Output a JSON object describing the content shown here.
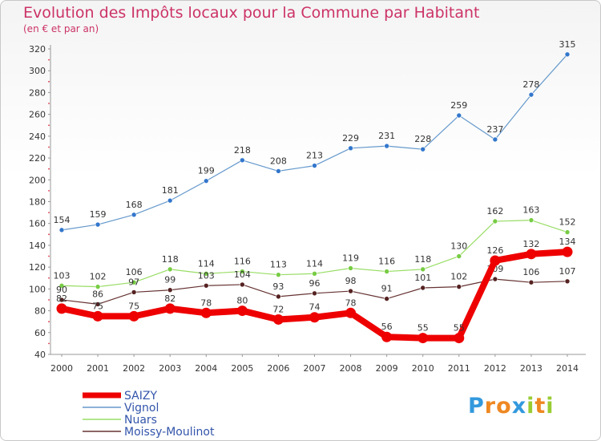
{
  "chart_data": {
    "type": "line",
    "title": "Evolution des Impôts locaux pour la Commune par Habitant",
    "subtitle": "(en € et par an)",
    "x": [
      "2000",
      "2001",
      "2002",
      "2003",
      "2004",
      "2005",
      "2006",
      "2007",
      "2008",
      "2009",
      "2010",
      "2011",
      "2012",
      "2013",
      "2014"
    ],
    "ylim": [
      40,
      320
    ],
    "yticks": [
      40,
      60,
      80,
      100,
      120,
      140,
      160,
      180,
      200,
      220,
      240,
      260,
      280,
      300,
      320
    ],
    "grid": false,
    "legend": "bottom-left",
    "series": [
      {
        "name": "Vignol",
        "color": "#6699cc",
        "marker": "#3377cc",
        "width": 1.2,
        "values": [
          154,
          159,
          168,
          181,
          199,
          218,
          208,
          213,
          229,
          231,
          228,
          259,
          237,
          278,
          315
        ]
      },
      {
        "name": "Nuars",
        "color": "#99dd66",
        "marker": "#77cc44",
        "width": 1.2,
        "values": [
          103,
          102,
          106,
          118,
          114,
          116,
          113,
          114,
          119,
          116,
          118,
          130,
          162,
          163,
          152
        ]
      },
      {
        "name": "Moissy-Moulinot",
        "color": "#663333",
        "marker": "#552222",
        "width": 1.2,
        "values": [
          90,
          86,
          97,
          99,
          103,
          104,
          93,
          96,
          98,
          91,
          101,
          102,
          109,
          106,
          107
        ]
      },
      {
        "name": "SAIZY",
        "color": "#ee0000",
        "marker": "#ee0000",
        "width": 8,
        "values": [
          82,
          75,
          75,
          82,
          78,
          80,
          72,
          74,
          78,
          56,
          55,
          55,
          126,
          132,
          134
        ]
      }
    ],
    "legend_order": [
      "SAIZY",
      "Vignol",
      "Nuars",
      "Moissy-Moulinot"
    ]
  },
  "branding": {
    "logo_text": "Proxiti",
    "letters": [
      {
        "ch": "P",
        "color": "#3399dd"
      },
      {
        "ch": "r",
        "color": "#ee8822"
      },
      {
        "ch": "o",
        "color": "#ee8822"
      },
      {
        "ch": "x",
        "color": "#3399dd"
      },
      {
        "ch": "i",
        "color": "#99cc33"
      },
      {
        "ch": "t",
        "color": "#ee8822"
      },
      {
        "ch": "i",
        "color": "#99cc33"
      }
    ]
  }
}
